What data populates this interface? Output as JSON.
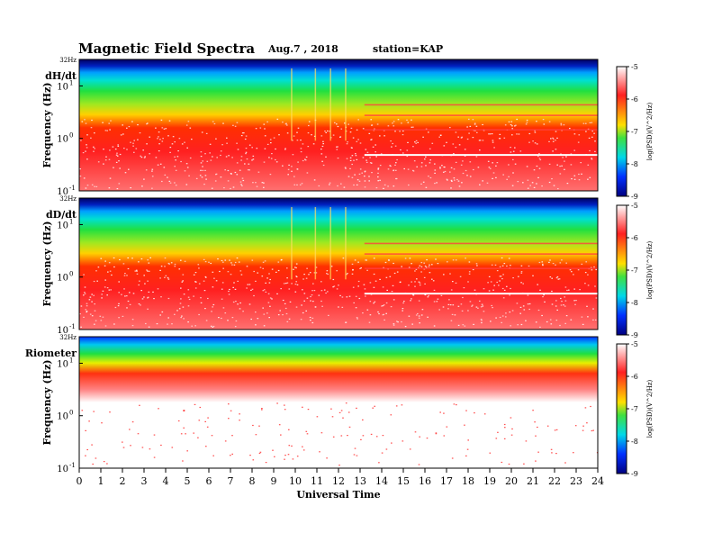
{
  "header": {
    "title": "Magnetic  Field  Spectra",
    "date": "Aug.7  , 2018",
    "station": "station=KAP"
  },
  "chart_data": {
    "type": "heatmap",
    "x_axis": {
      "label": "Universal  Time",
      "range": [
        0,
        24
      ],
      "ticks": [
        "0",
        "1",
        "2",
        "3",
        "4",
        "5",
        "6",
        "7",
        "8",
        "9",
        "10",
        "11",
        "12",
        "13",
        "14",
        "15",
        "16",
        "17",
        "18",
        "19",
        "20",
        "21",
        "22",
        "23",
        "24"
      ]
    },
    "y_axis": {
      "label": "Frequency  (Hz)",
      "scale": "log",
      "range_hz": [
        0.1,
        32
      ],
      "top_label": "32Hz",
      "tick_labels": [
        {
          "base": "10",
          "exp": "1",
          "value": 10
        },
        {
          "base": "10",
          "exp": "0",
          "value": 1
        },
        {
          "base": "10",
          "exp": "-1",
          "value": 0.1
        }
      ]
    },
    "colorbar": {
      "label": "log(PSD)(V^2/Hz)",
      "range": [
        -9,
        -5
      ],
      "ticks": [
        "-5",
        "-6",
        "-7",
        "-8",
        "-9"
      ],
      "colors": [
        "#ffffff",
        "#ff2020",
        "#ffe000",
        "#20e040",
        "#00d8e8",
        "#0030ff",
        "#000080"
      ]
    },
    "panels": [
      {
        "name": "dH/dt",
        "spectrum": "magnetometer"
      },
      {
        "name": "dD/dt",
        "spectrum": "magnetometer"
      },
      {
        "name": "Riometer",
        "spectrum": "riometer"
      }
    ]
  }
}
